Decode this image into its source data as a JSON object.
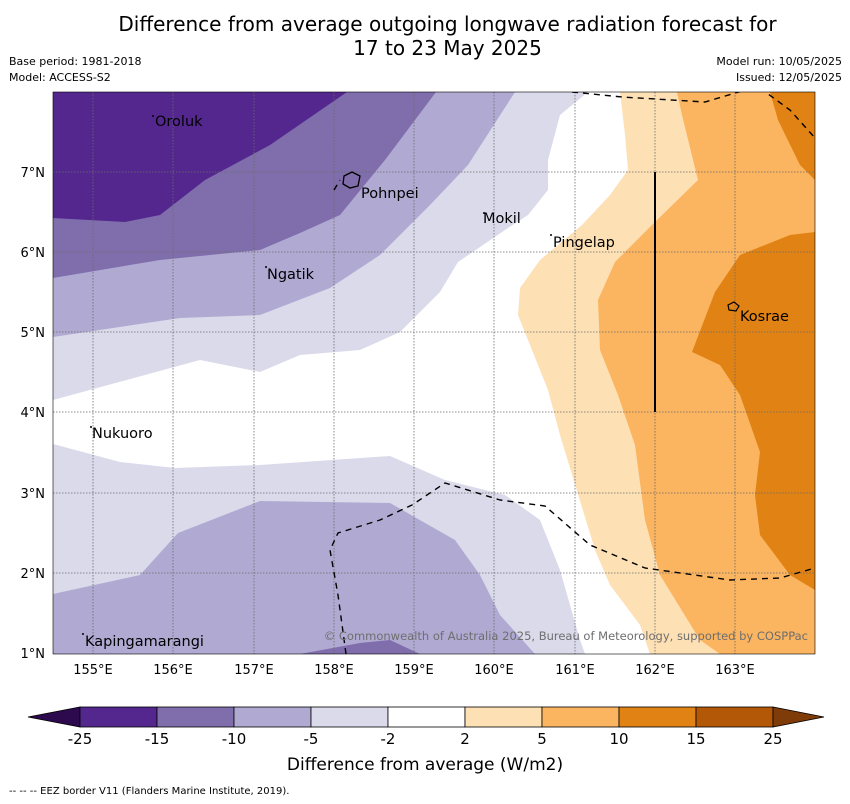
{
  "title": {
    "line1": "Difference from average outgoing longwave radiation forecast for",
    "line2": "17 to 23 May 2025"
  },
  "meta": {
    "base_period": "Base period: 1981-2018",
    "model": "Model: ACCESS-S2",
    "model_run": "Model run: 10/05/2025",
    "issued": "Issued: 12/05/2025"
  },
  "map": {
    "x_ticks": [
      "155°E",
      "156°E",
      "157°E",
      "158°E",
      "159°E",
      "160°E",
      "161°E",
      "162°E",
      "163°E"
    ],
    "y_ticks": [
      "7°N",
      "6°N",
      "5°N",
      "4°N",
      "3°N",
      "2°N",
      "1°N"
    ],
    "places": [
      "Oroluk",
      "Pohnpei",
      "Mokil",
      "Pingelap",
      "Ngatik",
      "Kosrae",
      "Nukuoro",
      "Kapingamarangi"
    ],
    "copyright": "© Commonwealth of Australia 2025, Bureau of Meteorology, supported by COSPPac"
  },
  "colorbar": {
    "labels": [
      "-25",
      "-15",
      "-10",
      "-5",
      "-2",
      "2",
      "5",
      "10",
      "15",
      "25"
    ],
    "colors": [
      "#2d0a4e",
      "#54278f",
      "#7f6eab",
      "#b0aad3",
      "#dadaeb",
      "#ffffff",
      "#fee0b5",
      "#fbb45f",
      "#e08214",
      "#b35806",
      "#7f3b08"
    ],
    "title": "Difference from average (W/m2)"
  },
  "footer": "-- -- -- EEZ border V11 (Flanders Marine Institute, 2019)."
}
